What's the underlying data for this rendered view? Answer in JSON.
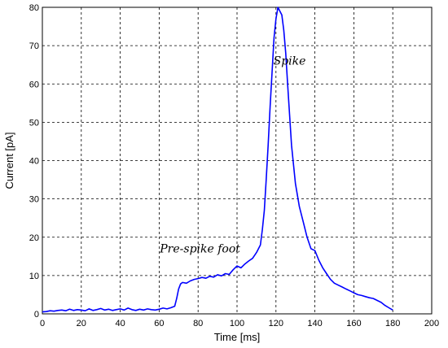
{
  "chart_data": {
    "type": "line",
    "title": "",
    "xlabel": "Time [ms]",
    "ylabel": "Current [pA]",
    "xlim": [
      0,
      200
    ],
    "ylim": [
      0,
      80
    ],
    "xticks": [
      0,
      20,
      40,
      60,
      80,
      100,
      120,
      140,
      160,
      180,
      200
    ],
    "yticks": [
      0,
      10,
      20,
      30,
      40,
      50,
      60,
      70,
      80
    ],
    "grid": true,
    "colors": {
      "series": "#0000ff"
    },
    "annotations": [
      {
        "text": "Spike",
        "x": 127,
        "y": 65
      },
      {
        "text": "Pre-spike foot",
        "x": 81,
        "y": 16
      }
    ],
    "series": [
      {
        "x": [
          0,
          2,
          4,
          6,
          8,
          10,
          12,
          14,
          16,
          18,
          20,
          22,
          24,
          26,
          28,
          30,
          32,
          34,
          36,
          38,
          40,
          42,
          44,
          46,
          48,
          50,
          52,
          54,
          56,
          58,
          60,
          62,
          64,
          66,
          68,
          69,
          70,
          71,
          72,
          74,
          76,
          78,
          80,
          82,
          84,
          86,
          88,
          90,
          92,
          94,
          96,
          98,
          100,
          102,
          104,
          106,
          108,
          110,
          112,
          113,
          114,
          115,
          116,
          117,
          118,
          119,
          120,
          121,
          122,
          123,
          124,
          125,
          126,
          127,
          128,
          130,
          132,
          134,
          136,
          138,
          140,
          142,
          144,
          146,
          148,
          150,
          152,
          154,
          156,
          158,
          160,
          162,
          164,
          166,
          168,
          170,
          172,
          174,
          176,
          178,
          180
        ],
        "y": [
          0.5,
          0.6,
          0.8,
          0.7,
          0.9,
          1.0,
          0.8,
          1.2,
          0.9,
          1.1,
          1.0,
          0.8,
          1.3,
          0.9,
          1.1,
          1.4,
          1.0,
          1.2,
          0.9,
          1.1,
          1.3,
          1.0,
          1.5,
          1.1,
          0.9,
          1.2,
          1.0,
          1.3,
          1.1,
          1.0,
          1.2,
          1.5,
          1.3,
          1.6,
          2.0,
          4.0,
          6.5,
          7.8,
          8.2,
          8.0,
          8.6,
          9.0,
          9.2,
          9.5,
          9.3,
          9.8,
          9.6,
          10.2,
          9.9,
          10.5,
          10.3,
          11.5,
          12.5,
          12.0,
          13.0,
          13.8,
          14.5,
          16.0,
          18.0,
          22.0,
          27.0,
          35.0,
          44.0,
          54.0,
          63.0,
          72.0,
          77.0,
          80.0,
          79.0,
          78.0,
          74.0,
          68.0,
          60.0,
          52.0,
          44.0,
          34.0,
          28.0,
          24.0,
          20.0,
          17.0,
          16.5,
          14.0,
          12.0,
          10.5,
          9.0,
          8.0,
          7.5,
          7.0,
          6.5,
          6.0,
          5.5,
          5.0,
          4.8,
          4.5,
          4.2,
          4.0,
          3.5,
          3.0,
          2.2,
          1.6,
          1.0
        ]
      }
    ]
  }
}
